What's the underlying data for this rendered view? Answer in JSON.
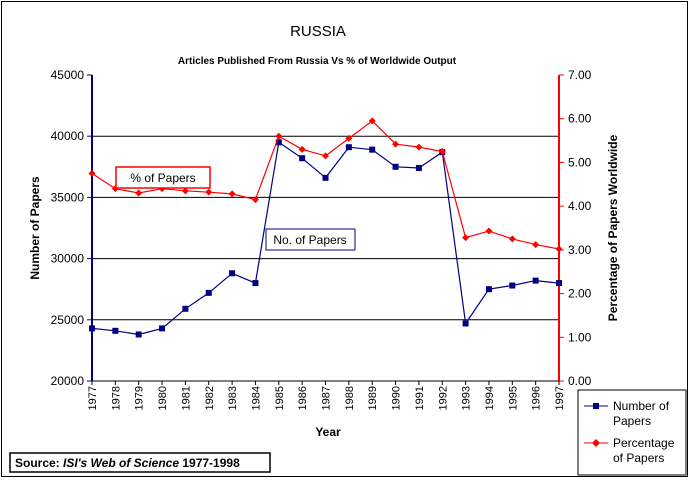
{
  "chart_data": {
    "type": "line",
    "title": "RUSSIA",
    "subtitle": "Articles Published From Russia  Vs % of Worldwide Output",
    "xlabel": "Year",
    "ylabel": "Number of Papers",
    "y2label": "Percentage of Papers Worldwide",
    "categories": [
      "1977",
      "1978",
      "1979",
      "1980",
      "1981",
      "1982",
      "1983",
      "1984",
      "1985",
      "1986",
      "1987",
      "1988",
      "1989",
      "1990",
      "1991",
      "1992",
      "1993",
      "1994",
      "1995",
      "1996",
      "1997"
    ],
    "ylim": [
      20000,
      45000
    ],
    "y2lim": [
      0,
      7
    ],
    "yticks": [
      "20000",
      "25000",
      "30000",
      "35000",
      "40000",
      "45000"
    ],
    "y2ticks": [
      "0.00",
      "1.00",
      "2.00",
      "3.00",
      "4.00",
      "5.00",
      "6.00",
      "7.00"
    ],
    "series": [
      {
        "name": "Number of Papers",
        "axis": "left",
        "color": "#000080",
        "marker": "square",
        "values": [
          24300,
          24100,
          23800,
          24300,
          25900,
          27200,
          28800,
          28000,
          39500,
          38200,
          36600,
          39100,
          38900,
          37500,
          37400,
          38700,
          24700,
          27500,
          27800,
          28200,
          28000
        ]
      },
      {
        "name": "Percentage of Papers",
        "axis": "right",
        "color": "#ff0000",
        "marker": "diamond",
        "values": [
          4.75,
          4.4,
          4.3,
          4.4,
          4.35,
          4.32,
          4.28,
          4.15,
          5.6,
          5.3,
          5.15,
          5.55,
          5.95,
          5.42,
          5.35,
          5.25,
          3.28,
          3.43,
          3.25,
          3.12,
          3.02
        ]
      }
    ],
    "annotations": [
      {
        "text": "% of Papers",
        "color": "#ff0000"
      },
      {
        "text": "No. of Papers",
        "color": "#000080"
      }
    ],
    "legend": {
      "position": "bottom-right",
      "entries": [
        "Number of Papers",
        "Percentage of Papers"
      ]
    },
    "source": {
      "prefix": "Source: ",
      "italic": "ISI's Web of Science",
      "suffix": " 1977-1998"
    }
  }
}
